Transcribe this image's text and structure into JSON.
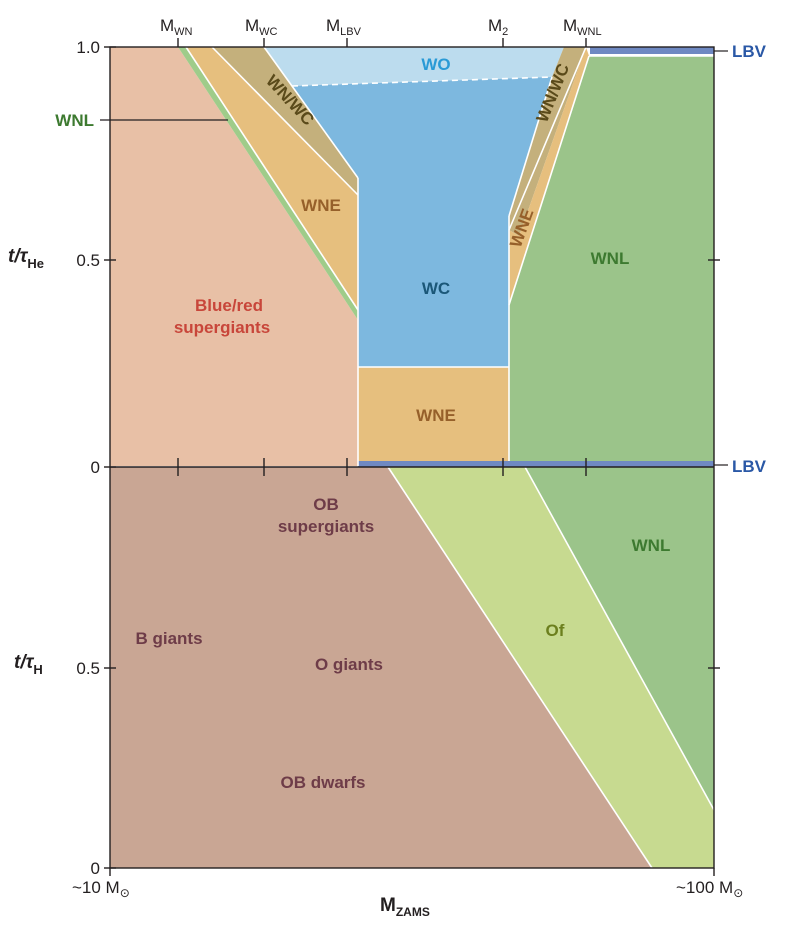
{
  "colors": {
    "bg": "#ffffff",
    "rsg": "#e8c0a6",
    "wnl_strip": "#9fcc8a",
    "wne": "#e6bf7e",
    "wnwc": "#c4b07c",
    "wo": "#bcdcee",
    "wc": "#7db8df",
    "wnl": "#9bc48a",
    "lbv": "#6f89c2",
    "ob": "#c9a694",
    "of": "#c7da90",
    "wnl_bottom": "#9bc48a",
    "frame": "#231f20",
    "text_red": "#c8463a",
    "text_brown": "#96602a",
    "text_green": "#3d7a30",
    "text_dkgreen": "#4a6a1f",
    "text_mauve": "#6e3c48",
    "text_wc": "#1b5778",
    "text_wo": "#2a9ad6",
    "text_wnwc": "#5a4a1a",
    "text_lbv": "#2a58a6",
    "text_of": "#6c7f1e"
  },
  "top_axis": {
    "markers": [
      {
        "main": "M",
        "sub": "WN"
      },
      {
        "main": "M",
        "sub": "WC"
      },
      {
        "main": "M",
        "sub": "LBV"
      },
      {
        "main": "M",
        "sub": "2"
      },
      {
        "main": "M",
        "sub": "WNL"
      }
    ]
  },
  "y_axis": {
    "upper": {
      "label_main": "t/τ",
      "label_sub": "He",
      "ticks": [
        "1.0",
        "0.5",
        "0"
      ]
    },
    "lower": {
      "label_main": "t/τ",
      "label_sub": "H",
      "ticks": [
        "0.5",
        "0"
      ]
    }
  },
  "x_axis": {
    "label_main": "M",
    "label_sub": "ZAMS",
    "left_end": "~10 M",
    "right_end": "~100 M",
    "sun_symbol": "⊙"
  },
  "regions": {
    "blue_red_sg": [
      "Blue/red",
      "supergiants"
    ],
    "wne_left": "WNE",
    "wnwc_left": "WN/WC",
    "wo": "WO",
    "wc": "WC",
    "wne_center": "WNE",
    "wnwc_right": "WN/WC",
    "wne_right": "WNE",
    "wnl_upper": "WNL",
    "wnl_left_callout": "WNL",
    "lbv_top": "LBV",
    "lbv_mid": "LBV",
    "ob_supergiants": [
      "OB",
      "supergiants"
    ],
    "b_giants": "B giants",
    "o_giants": "O giants",
    "ob_dwarfs": "OB dwarfs",
    "of": "Of",
    "wnl_lower": "WNL"
  }
}
